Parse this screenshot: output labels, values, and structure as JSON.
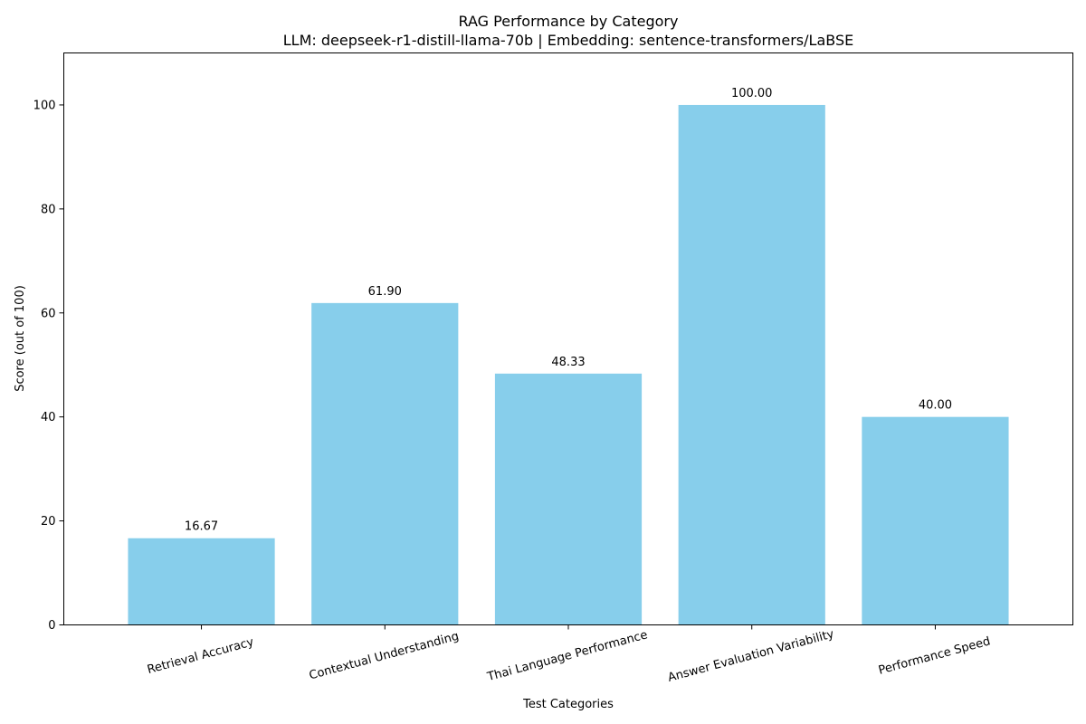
{
  "chart_data": {
    "type": "bar",
    "title": "RAG Performance by Category",
    "subtitle": "LLM: deepseek-r1-distill-llama-70b | Embedding: sentence-transformers/LaBSE",
    "xlabel": "Test Categories",
    "ylabel": "Score (out of 100)",
    "categories": [
      "Retrieval Accuracy",
      "Contextual Understanding",
      "Thai Language Performance",
      "Answer Evaluation Variability",
      "Performance Speed"
    ],
    "values": [
      16.67,
      61.9,
      48.33,
      100.0,
      40.0
    ],
    "value_labels": [
      "16.67",
      "61.90",
      "48.33",
      "100.00",
      "40.00"
    ],
    "ylim": [
      0,
      110
    ],
    "yticks": [
      0,
      20,
      40,
      60,
      80,
      100
    ],
    "grid": false,
    "bar_color": "#87CEEB",
    "tick_label_rotation": 15
  }
}
